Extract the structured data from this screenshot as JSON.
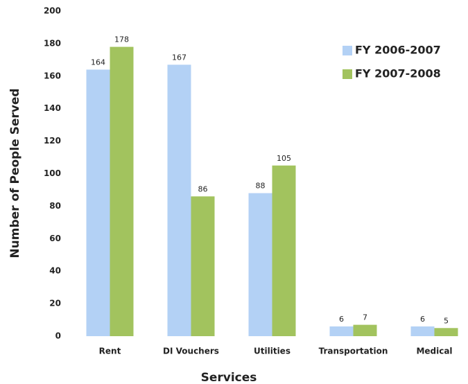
{
  "chart_data": {
    "type": "bar",
    "xlabel": "Services",
    "ylabel": "Number of People Served",
    "categories": [
      "Rent",
      "DI Vouchers",
      "Utilities",
      "Transportation",
      "Medical"
    ],
    "series": [
      {
        "name": "FY 2006-2007",
        "color": "#b3d1f5",
        "values": [
          164,
          167,
          88,
          6,
          6
        ]
      },
      {
        "name": "FY 2007-2008",
        "color": "#a2c35e",
        "values": [
          178,
          86,
          105,
          7,
          5
        ]
      }
    ],
    "ylim": [
      0,
      200
    ],
    "yticks": [
      0,
      20,
      40,
      60,
      80,
      100,
      120,
      140,
      160,
      180,
      200
    ],
    "grid": false,
    "legend": "upper right"
  }
}
